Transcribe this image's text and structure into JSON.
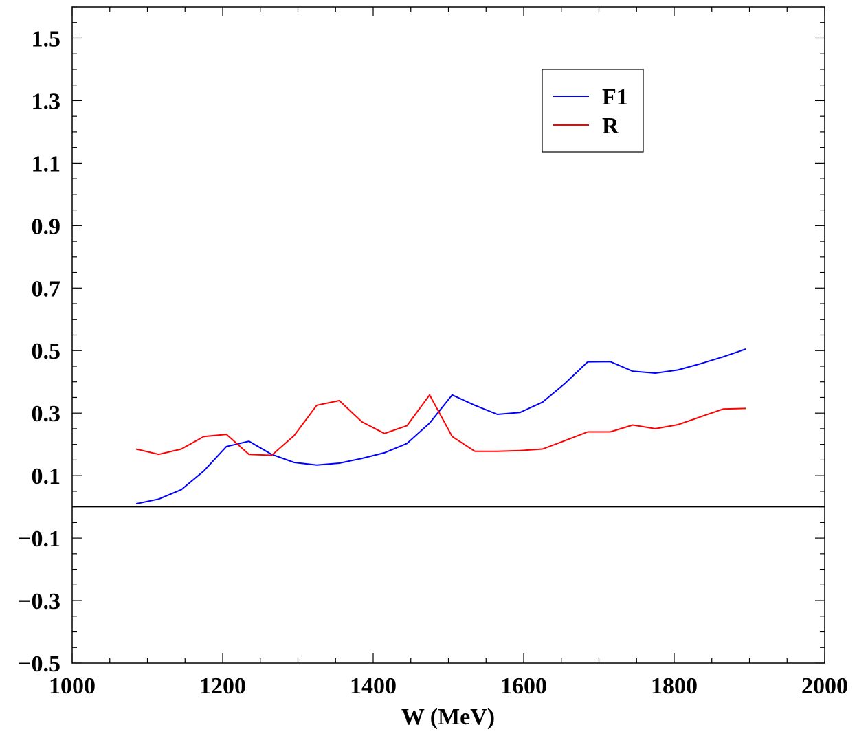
{
  "chart_data": {
    "type": "line",
    "title": "",
    "xlabel": "W (MeV)",
    "ylabel": "",
    "xlim": [
      1000,
      2000
    ],
    "ylim": [
      -0.5,
      1.6
    ],
    "x_ticks": [
      1000,
      1200,
      1400,
      1600,
      1800,
      2000
    ],
    "x_tick_labels": [
      "1000",
      "1200",
      "1400",
      "1600",
      "1800",
      "2000"
    ],
    "y_ticks": [
      -0.5,
      -0.3,
      -0.1,
      0.1,
      0.3,
      0.5,
      0.7,
      0.9,
      1.1,
      1.3,
      1.5
    ],
    "y_tick_labels": [
      "−0.5",
      "−0.3",
      "−0.1",
      "0.1",
      "0.3",
      "0.5",
      "0.7",
      "0.9",
      "1.1",
      "1.3",
      "1.5"
    ],
    "zero_line": true,
    "grid": false,
    "legend_position": "top-right",
    "x": [
      1085,
      1115,
      1145,
      1175,
      1205,
      1235,
      1265,
      1295,
      1325,
      1355,
      1385,
      1415,
      1445,
      1475,
      1505,
      1535,
      1565,
      1595,
      1625,
      1655,
      1685,
      1715,
      1745,
      1775,
      1805,
      1835,
      1865,
      1895
    ],
    "series": [
      {
        "name": "F1",
        "color": "#0000ff",
        "values": [
          0.01,
          0.025,
          0.055,
          0.115,
          0.193,
          0.21,
          0.168,
          0.142,
          0.134,
          0.14,
          0.155,
          0.173,
          0.203,
          0.268,
          0.358,
          0.325,
          0.296,
          0.302,
          0.335,
          0.395,
          0.464,
          0.465,
          0.434,
          0.428,
          0.438,
          0.458,
          0.48,
          0.505
        ]
      },
      {
        "name": "R",
        "color": "#ff0000",
        "values": [
          0.185,
          0.168,
          0.185,
          0.225,
          0.232,
          0.168,
          0.165,
          0.228,
          0.325,
          0.34,
          0.272,
          0.235,
          0.26,
          0.358,
          0.225,
          0.178,
          0.178,
          0.18,
          0.185,
          0.212,
          0.24,
          0.24,
          0.262,
          0.25,
          0.263,
          0.288,
          0.313,
          0.315
        ]
      }
    ]
  }
}
